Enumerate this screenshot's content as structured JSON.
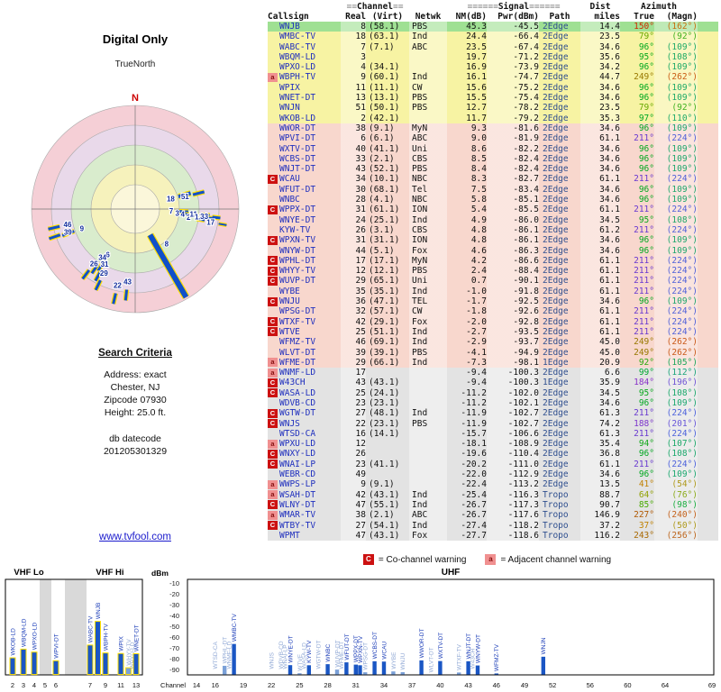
{
  "polar": {
    "title": "Digital Only",
    "north_label": "TrueNorth",
    "n_marker": "N",
    "ring_colors": [
      "#f5cfd6",
      "#e9d9ea",
      "#d9eccd",
      "#f6f2bc",
      "#fbf7da"
    ],
    "spokes": [
      {
        "t": "18",
        "az": 74,
        "r1": 50,
        "r2": 64,
        "w": 4
      },
      {
        "t": "51",
        "az": 76,
        "r1": 66,
        "r2": 79,
        "w": 3
      },
      {
        "t": "7",
        "az": 93,
        "r1": 49,
        "r2": 59,
        "w": 3
      },
      {
        "t": "3",
        "az": 96,
        "r1": 56,
        "r2": 65,
        "w": 3
      },
      {
        "t": "4",
        "az": 96,
        "r1": 62,
        "r2": 71,
        "w": 3
      },
      {
        "t": "2",
        "az": 99,
        "r1": 69,
        "r2": 78,
        "w": 3
      },
      {
        "t": "11",
        "az": 95,
        "r1": 74,
        "r2": 83,
        "w": 3
      },
      {
        "t": "13",
        "az": 97,
        "r1": 80,
        "r2": 89,
        "w": 3
      },
      {
        "t": "33",
        "az": 96,
        "r1": 86,
        "r2": 95,
        "w": 3
      },
      {
        "t": "17",
        "az": 100,
        "r1": 94,
        "r2": 103,
        "w": 2
      },
      {
        "t": "8",
        "az": 150,
        "r1": 33,
        "r2": 113,
        "w": 6,
        "lr": 52,
        "laz": 138
      },
      {
        "t": "9",
        "az": 250,
        "r1": 72,
        "r2": 86,
        "w": 3
      },
      {
        "t": "39",
        "az": 251,
        "r1": 88,
        "r2": 101,
        "w": 3
      },
      {
        "t": "46",
        "az": 257,
        "r1": 86,
        "r2": 99,
        "w": 3
      },
      {
        "t": "6",
        "az": 211,
        "r1": 68,
        "r2": 80,
        "w": 3
      },
      {
        "t": "34",
        "az": 214,
        "r1": 74,
        "r2": 86,
        "w": 3
      },
      {
        "t": "31",
        "az": 209,
        "r1": 79,
        "r2": 91,
        "w": 3
      },
      {
        "t": "26",
        "az": 217,
        "r1": 85,
        "r2": 97,
        "w": 3
      },
      {
        "t": "29",
        "az": 206,
        "r1": 88,
        "r2": 100,
        "w": 3
      },
      {
        "t": "43",
        "az": 186,
        "r1": 90,
        "r2": 102,
        "w": 3
      },
      {
        "t": "22",
        "az": 193,
        "r1": 96,
        "r2": 108,
        "w": 3
      }
    ]
  },
  "search": {
    "title": "Search Criteria",
    "lines": [
      "Address: exact",
      "Chester, NJ",
      "Zipcode 07930",
      "Height: 25.0 ft."
    ],
    "db_label": "db datecode",
    "db_code": "201205301329"
  },
  "link": "www.tvfool.com",
  "table": {
    "header1": [
      "",
      "≡≡Channel≡≡",
      "",
      "≡≡≡≡≡≡Signal≡≡≡≡≡≡",
      "Dist",
      "Azimuth"
    ],
    "header2": [
      "Callsign",
      "Real",
      "(Virt)",
      "Netwk",
      "NM(dB)",
      "Pwr(dBm)",
      "Path",
      "miles",
      "True",
      "(Magn)"
    ],
    "az_colors": {
      "37": "#c08000",
      "41": "#c08000",
      "50": "#a89000",
      "54": "#a89000",
      "64": "#90a000",
      "76": "#80a400",
      "79": "#68a800",
      "85": "#48aa00",
      "92": "#28a810",
      "94": "#10a818",
      "95": "#08a81c",
      "96": "#00a820",
      "97": "#00a824",
      "98": "#00a82c",
      "99": "#00a830",
      "105": "#00a04c",
      "107": "#00a058",
      "108": "#00a05c",
      "109": "#00a060",
      "110": "#00a064",
      "112": "#009c6c",
      "150": "#d02800",
      "162": "#cc6000",
      "184": "#8830c8",
      "188": "#7c34cc",
      "196": "#6040d4",
      "201": "#5844d8",
      "211": "#6838d0",
      "224": "#3850dc",
      "227": "#b05800",
      "240": "#c05000",
      "243": "#a86800",
      "249": "#987800",
      "256": "#b85400",
      "262": "#c44800"
    },
    "rows": [
      [
        "",
        "WNJB",
        "8",
        "(58.1)",
        "PBS",
        "45.3",
        "-45.5",
        "2Edge",
        "14.4",
        "150",
        "162",
        "g"
      ],
      [
        "",
        "WMBC-TV",
        "18",
        "(63.1)",
        "Ind",
        "24.4",
        "-66.4",
        "2Edge",
        "23.5",
        "79",
        "92",
        "y"
      ],
      [
        "",
        "WABC-TV",
        "7",
        "(7.1)",
        "ABC",
        "23.5",
        "-67.4",
        "2Edge",
        "34.6",
        "96",
        "109",
        "y"
      ],
      [
        "",
        "WBQM-LD",
        "3",
        "",
        "",
        "19.7",
        "-71.2",
        "2Edge",
        "35.6",
        "95",
        "108",
        "y"
      ],
      [
        "",
        "WPXO-LD",
        "4",
        "(34.1)",
        "",
        "16.9",
        "-73.9",
        "2Edge",
        "34.2",
        "96",
        "109",
        "y"
      ],
      [
        "a",
        "WBPH-TV",
        "9",
        "(60.1)",
        "Ind",
        "16.1",
        "-74.7",
        "2Edge",
        "44.7",
        "249",
        "262",
        "y"
      ],
      [
        "",
        "WPIX",
        "11",
        "(11.1)",
        "CW",
        "15.6",
        "-75.2",
        "2Edge",
        "34.6",
        "96",
        "109",
        "y"
      ],
      [
        "",
        "WNET-DT",
        "13",
        "(13.1)",
        "PBS",
        "15.5",
        "-75.4",
        "2Edge",
        "34.6",
        "96",
        "109",
        "y"
      ],
      [
        "",
        "WNJN",
        "51",
        "(50.1)",
        "PBS",
        "12.7",
        "-78.2",
        "2Edge",
        "23.5",
        "79",
        "92",
        "y"
      ],
      [
        "",
        "WKOB-LD",
        "2",
        "(42.1)",
        "",
        "11.7",
        "-79.2",
        "2Edge",
        "35.3",
        "97",
        "110",
        "y"
      ],
      [
        "",
        "WWOR-DT",
        "38",
        "(9.1)",
        "MyN",
        "9.3",
        "-81.6",
        "2Edge",
        "34.6",
        "96",
        "109",
        "p"
      ],
      [
        "",
        "WPVI-DT",
        "6",
        "(6.1)",
        "ABC",
        "9.0",
        "-81.9",
        "2Edge",
        "61.1",
        "211",
        "224",
        "p"
      ],
      [
        "",
        "WXTV-DT",
        "40",
        "(41.1)",
        "Uni",
        "8.6",
        "-82.2",
        "2Edge",
        "34.6",
        "96",
        "109",
        "p"
      ],
      [
        "",
        "WCBS-DT",
        "33",
        "(2.1)",
        "CBS",
        "8.5",
        "-82.4",
        "2Edge",
        "34.6",
        "96",
        "109",
        "p"
      ],
      [
        "",
        "WNJT-DT",
        "43",
        "(52.1)",
        "PBS",
        "8.4",
        "-82.4",
        "2Edge",
        "34.6",
        "96",
        "109",
        "p"
      ],
      [
        "C",
        "WCAU",
        "34",
        "(10.1)",
        "NBC",
        "8.3",
        "-82.7",
        "2Edge",
        "61.1",
        "211",
        "224",
        "p"
      ],
      [
        "",
        "WFUT-DT",
        "30",
        "(68.1)",
        "Tel",
        "7.5",
        "-83.4",
        "2Edge",
        "34.6",
        "96",
        "109",
        "p"
      ],
      [
        "",
        "WNBC",
        "28",
        "(4.1)",
        "NBC",
        "5.8",
        "-85.1",
        "2Edge",
        "34.6",
        "96",
        "109",
        "p"
      ],
      [
        "C",
        "WPPX-DT",
        "31",
        "(61.1)",
        "ION",
        "5.4",
        "-85.5",
        "2Edge",
        "61.1",
        "211",
        "224",
        "p"
      ],
      [
        "",
        "WNYE-DT",
        "24",
        "(25.1)",
        "Ind",
        "4.9",
        "-86.0",
        "2Edge",
        "34.5",
        "95",
        "108",
        "p"
      ],
      [
        "",
        "KYW-TV",
        "26",
        "(3.1)",
        "CBS",
        "4.8",
        "-86.1",
        "2Edge",
        "61.2",
        "211",
        "224",
        "p"
      ],
      [
        "C",
        "WPXN-TV",
        "31",
        "(31.1)",
        "ION",
        "4.8",
        "-86.1",
        "2Edge",
        "34.6",
        "96",
        "109",
        "p"
      ],
      [
        "",
        "WNYW-DT",
        "44",
        "(5.1)",
        "Fox",
        "4.6",
        "-86.3",
        "2Edge",
        "34.6",
        "96",
        "109",
        "p"
      ],
      [
        "C",
        "WPHL-DT",
        "17",
        "(17.1)",
        "MyN",
        "4.2",
        "-86.6",
        "2Edge",
        "61.1",
        "211",
        "224",
        "p"
      ],
      [
        "C",
        "WHYY-TV",
        "12",
        "(12.1)",
        "PBS",
        "2.4",
        "-88.4",
        "2Edge",
        "61.1",
        "211",
        "224",
        "p"
      ],
      [
        "C",
        "WUVP-DT",
        "29",
        "(65.1)",
        "Uni",
        "0.7",
        "-90.1",
        "2Edge",
        "61.1",
        "211",
        "224",
        "p"
      ],
      [
        "",
        "WYBE",
        "35",
        "(35.1)",
        "Ind",
        "-1.0",
        "-91.8",
        "2Edge",
        "61.1",
        "211",
        "224",
        "p"
      ],
      [
        "C",
        "WNJU",
        "36",
        "(47.1)",
        "TEL",
        "-1.7",
        "-92.5",
        "2Edge",
        "34.6",
        "96",
        "109",
        "p"
      ],
      [
        "",
        "WPSG-DT",
        "32",
        "(57.1)",
        "CW",
        "-1.8",
        "-92.6",
        "2Edge",
        "61.1",
        "211",
        "224",
        "p"
      ],
      [
        "C",
        "WTXF-TV",
        "42",
        "(29.1)",
        "Fox",
        "-2.0",
        "-92.8",
        "2Edge",
        "61.1",
        "211",
        "224",
        "p"
      ],
      [
        "C",
        "WTVE",
        "25",
        "(51.1)",
        "Ind",
        "-2.7",
        "-93.5",
        "2Edge",
        "61.1",
        "211",
        "224",
        "p"
      ],
      [
        "",
        "WFMZ-TV",
        "46",
        "(69.1)",
        "Ind",
        "-2.9",
        "-93.7",
        "2Edge",
        "45.0",
        "249",
        "262",
        "p"
      ],
      [
        "",
        "WLVT-DT",
        "39",
        "(39.1)",
        "PBS",
        "-4.1",
        "-94.9",
        "2Edge",
        "45.0",
        "249",
        "262",
        "p"
      ],
      [
        "a",
        "WFME-DT",
        "29",
        "(66.1)",
        "Ind",
        "-7.3",
        "-98.1",
        "1Edge",
        "20.9",
        "92",
        "105",
        "p"
      ],
      [
        "a",
        "WNMF-LD",
        "17",
        "",
        "",
        "-9.4",
        "-100.3",
        "2Edge",
        "6.6",
        "99",
        "112",
        "e"
      ],
      [
        "C",
        "W43CH",
        "43",
        "(43.1)",
        "",
        "-9.4",
        "-100.3",
        "1Edge",
        "35.9",
        "184",
        "196",
        "e"
      ],
      [
        "C",
        "WASA-LD",
        "25",
        "(24.1)",
        "",
        "-11.2",
        "-102.0",
        "2Edge",
        "34.5",
        "95",
        "108",
        "e"
      ],
      [
        "",
        "WDVB-CD",
        "23",
        "(23.1)",
        "",
        "-11.2",
        "-102.1",
        "2Edge",
        "34.6",
        "96",
        "109",
        "e"
      ],
      [
        "C",
        "WGTW-DT",
        "27",
        "(48.1)",
        "Ind",
        "-11.9",
        "-102.7",
        "2Edge",
        "61.3",
        "211",
        "224",
        "e"
      ],
      [
        "C",
        "WNJS",
        "22",
        "(23.1)",
        "PBS",
        "-11.9",
        "-102.7",
        "2Edge",
        "74.2",
        "188",
        "201",
        "e"
      ],
      [
        "",
        "WTSD-CA",
        "16",
        "(14.1)",
        "",
        "-15.7",
        "-106.6",
        "2Edge",
        "61.3",
        "211",
        "224",
        "e"
      ],
      [
        "a",
        "WPXU-LD",
        "12",
        "",
        "",
        "-18.1",
        "-108.9",
        "2Edge",
        "35.4",
        "94",
        "107",
        "e"
      ],
      [
        "C",
        "WNXY-LD",
        "26",
        "",
        "",
        "-19.6",
        "-110.4",
        "2Edge",
        "36.8",
        "96",
        "108",
        "e"
      ],
      [
        "C",
        "WNAI-LP",
        "23",
        "(41.1)",
        "",
        "-20.2",
        "-111.0",
        "2Edge",
        "61.1",
        "211",
        "224",
        "e"
      ],
      [
        "",
        "WEBR-CD",
        "49",
        "",
        "",
        "-22.0",
        "-112.9",
        "2Edge",
        "34.6",
        "96",
        "109",
        "e"
      ],
      [
        "a",
        "WWPS-LP",
        "9",
        "(9.1)",
        "",
        "-22.4",
        "-113.2",
        "2Edge",
        "13.5",
        "41",
        "54",
        "e"
      ],
      [
        "a",
        "WSAH-DT",
        "42",
        "(43.1)",
        "Ind",
        "-25.4",
        "-116.3",
        "Tropo",
        "88.7",
        "64",
        "76",
        "e"
      ],
      [
        "C",
        "WLNY-DT",
        "47",
        "(55.1)",
        "Ind",
        "-26.7",
        "-117.3",
        "Tropo",
        "90.7",
        "85",
        "98",
        "e"
      ],
      [
        "a",
        "WMAR-TV",
        "38",
        "(2.1)",
        "ABC",
        "-26.7",
        "-117.6",
        "Tropo",
        "146.9",
        "227",
        "240",
        "e"
      ],
      [
        "C",
        "WTBY-TV",
        "27",
        "(54.1)",
        "Ind",
        "-27.4",
        "-118.2",
        "Tropo",
        "37.2",
        "37",
        "50",
        "e"
      ],
      [
        "",
        "WPMT",
        "47",
        "(43.1)",
        "Fox",
        "-27.7",
        "-118.6",
        "Tropo",
        "116.2",
        "243",
        "256",
        "e"
      ]
    ]
  },
  "legend": {
    "c": "C",
    "c_text": "= Co-channel warning",
    "a": "a",
    "a_text": "= Adjacent channel warning"
  },
  "charts": {
    "dbm_label": "dBm",
    "scale": [
      -10,
      -20,
      -30,
      -40,
      -50,
      -60,
      -70,
      -80,
      -90
    ],
    "vhf_lo_label": "VHF Lo",
    "vhf_hi_label": "VHF Hi",
    "uhf_label": "UHF",
    "channel_label": "Channel",
    "vhf_ticks": [
      2,
      3,
      4,
      5,
      6,
      7,
      9,
      11,
      13
    ],
    "uhf_ticks": [
      14,
      16,
      19,
      22,
      25,
      28,
      31,
      34,
      37,
      40,
      43,
      46,
      49,
      52,
      56,
      60,
      64,
      69
    ],
    "vhf_bars": [
      {
        "ch": 2,
        "dbm": -79.2,
        "label": "WKOB-LD",
        "weak": 0
      },
      {
        "ch": 3,
        "dbm": -71.2,
        "label": "WBQM-LD",
        "weak": 0
      },
      {
        "ch": 4,
        "dbm": -73.9,
        "label": "WPXO-LD",
        "weak": 0
      },
      {
        "ch": 6,
        "dbm": -81.9,
        "label": "WPVI-DT",
        "weak": 0
      },
      {
        "ch": 7,
        "dbm": -67.4,
        "label": "WABC-TV",
        "weak": 0
      },
      {
        "ch": 8,
        "dbm": -45.5,
        "label": "WNJB",
        "weak": 0
      },
      {
        "ch": 9,
        "dbm": -74.7,
        "label": "WBPH-TV",
        "weak": 0
      },
      {
        "ch": 11,
        "dbm": -75.2,
        "label": "WPIX",
        "weak": 0
      },
      {
        "ch": 12,
        "dbm": -88.4,
        "label": "WHYY-TV",
        "weak": 1
      },
      {
        "ch": 12.5,
        "dbm": -108.9,
        "label": "WPXU-LD",
        "weak": 1
      },
      {
        "ch": 13,
        "dbm": -75.4,
        "label": "WNET-DT",
        "weak": 0
      }
    ],
    "uhf_bars": [
      {
        "ch": 16,
        "dbm": -106.6,
        "label": "WTSD-CA",
        "weak": 1
      },
      {
        "ch": 17,
        "dbm": -86.6,
        "label": "WPHL-DT",
        "weak": 1
      },
      {
        "ch": 17.45,
        "dbm": -100.3,
        "label": "WNMF-LD",
        "weak": 1
      },
      {
        "ch": 18,
        "dbm": -66.4,
        "label": "WMBC-TV",
        "weak": 0
      },
      {
        "ch": 22,
        "dbm": -102.7,
        "label": "WNJS",
        "weak": 1
      },
      {
        "ch": 23,
        "dbm": -102.1,
        "label": "WDVB-CD",
        "weak": 1
      },
      {
        "ch": 23.45,
        "dbm": -111.0,
        "label": "WNAI-LP",
        "weak": 1
      },
      {
        "ch": 24,
        "dbm": -86.0,
        "label": "WNYE-DT",
        "weak": 0
      },
      {
        "ch": 25,
        "dbm": -93.5,
        "label": "WTVE",
        "weak": 1
      },
      {
        "ch": 25.45,
        "dbm": -102.0,
        "label": "WASA-LD",
        "weak": 1
      },
      {
        "ch": 26,
        "dbm": -86.1,
        "label": "KYW-TV",
        "weak": 0
      },
      {
        "ch": 27,
        "dbm": -102.7,
        "label": "WGTW-DT",
        "weak": 1
      },
      {
        "ch": 28,
        "dbm": -85.1,
        "label": "WNBC",
        "weak": 0
      },
      {
        "ch": 29,
        "dbm": -90.1,
        "label": "WUVP-DT",
        "weak": 1
      },
      {
        "ch": 29.45,
        "dbm": -98.1,
        "label": "WFME-DT",
        "weak": 1
      },
      {
        "ch": 30,
        "dbm": -83.4,
        "label": "WFUT-DT",
        "weak": 0
      },
      {
        "ch": 31,
        "dbm": -85.5,
        "label": "WPPX-DT",
        "weak": 0
      },
      {
        "ch": 31.45,
        "dbm": -86.1,
        "label": "WPXN-TV",
        "weak": 0
      },
      {
        "ch": 32,
        "dbm": -92.6,
        "label": "WPSG-DT",
        "weak": 1
      },
      {
        "ch": 33,
        "dbm": -82.4,
        "label": "WCBS-DT",
        "weak": 0
      },
      {
        "ch": 34,
        "dbm": -82.7,
        "label": "WCAU",
        "weak": 0
      },
      {
        "ch": 35,
        "dbm": -91.8,
        "label": "WYBE",
        "weak": 1
      },
      {
        "ch": 36,
        "dbm": -92.5,
        "label": "WNJU",
        "weak": 1
      },
      {
        "ch": 38,
        "dbm": -81.6,
        "label": "WWOR-DT",
        "weak": 0
      },
      {
        "ch": 39,
        "dbm": -94.9,
        "label": "WLVT-DT",
        "weak": 1
      },
      {
        "ch": 40,
        "dbm": -82.2,
        "label": "WXTV-DT",
        "weak": 0
      },
      {
        "ch": 42,
        "dbm": -92.8,
        "label": "WTXF-TV",
        "weak": 1
      },
      {
        "ch": 43,
        "dbm": -82.4,
        "label": "WNJT-DT",
        "weak": 0
      },
      {
        "ch": 43.45,
        "dbm": -100.3,
        "label": "W43CH",
        "weak": 1
      },
      {
        "ch": 44,
        "dbm": -86.3,
        "label": "WNYW-DT",
        "weak": 0
      },
      {
        "ch": 46,
        "dbm": -93.7,
        "label": "WFMZ-TV",
        "weak": 0
      },
      {
        "ch": 51,
        "dbm": -78.2,
        "label": "WNJN",
        "weak": 0
      }
    ]
  }
}
